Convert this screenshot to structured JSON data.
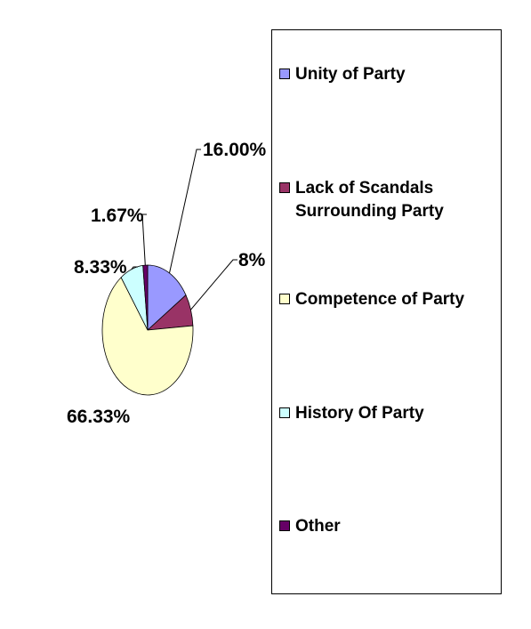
{
  "chart_data": {
    "type": "pie",
    "title": "",
    "slices": [
      {
        "name": "Unity of Party",
        "value": 16.0,
        "label": "16.00%",
        "color": "#9999FF"
      },
      {
        "name": "Lack of Scandals Surrounding Party",
        "value": 8,
        "label": "8%",
        "color": "#993366"
      },
      {
        "name": "Competence of Party",
        "value": 66.33,
        "label": "66.33%",
        "color": "#FFFFCC"
      },
      {
        "name": "History Of Party",
        "value": 8.33,
        "label": "8.33%",
        "color": "#CCFFFF"
      },
      {
        "name": "Other",
        "value": 1.67,
        "label": "1.67%",
        "color": "#660066"
      }
    ],
    "legend_position": "right"
  }
}
